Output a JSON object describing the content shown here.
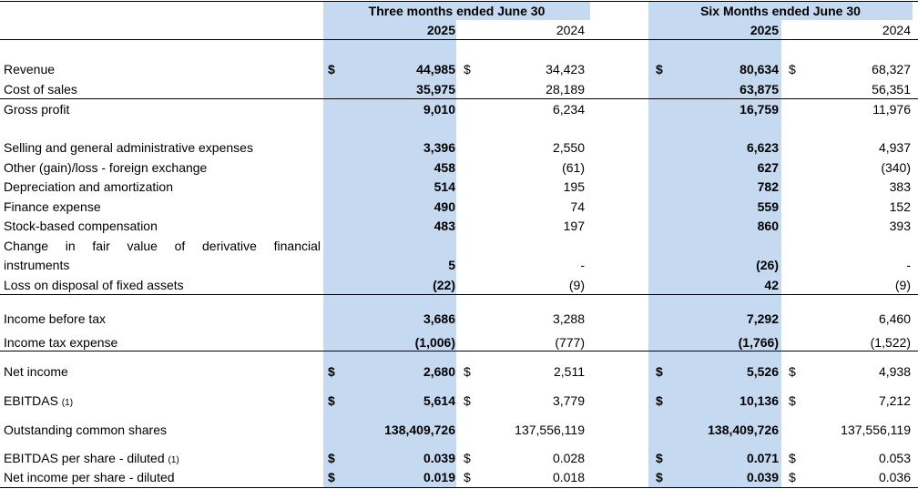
{
  "header": {
    "three_months": "Three months ended June 30",
    "six_months": "Six Months ended June 30",
    "years": [
      "2025",
      "2024",
      "2025",
      "2024"
    ]
  },
  "colors": {
    "highlight": "#c5d9f1"
  },
  "rows": [
    {
      "label": "Revenue",
      "dollar": [
        true,
        true,
        true,
        true
      ],
      "values": [
        "44,985",
        "34,423",
        "80,634",
        "68,327"
      ]
    },
    {
      "label": "Cost of sales",
      "values": [
        "35,975",
        "28,189",
        "63,875",
        "56,351"
      ]
    },
    {
      "label": "Gross profit",
      "values": [
        "9,010",
        "6,234",
        "16,759",
        "11,976"
      ]
    },
    {
      "label": "Selling and general administrative expenses",
      "values": [
        "3,396",
        "2,550",
        "6,623",
        "4,937"
      ]
    },
    {
      "label": "Other (gain)/loss - foreign exchange",
      "values": [
        "458",
        "(61)",
        "627",
        "(340)"
      ]
    },
    {
      "label": "Depreciation and amortization",
      "values": [
        "514",
        "195",
        "782",
        "383"
      ]
    },
    {
      "label": "Finance expense",
      "values": [
        "490",
        "74",
        "559",
        "152"
      ]
    },
    {
      "label": "Stock-based compensation",
      "values": [
        "483",
        "197",
        "860",
        "393"
      ]
    },
    {
      "label": "Change in fair value of derivative financial",
      "label2": "instruments",
      "values": [
        "5",
        "-",
        "(26)",
        "-"
      ]
    },
    {
      "label": "Loss on disposal of fixed assets",
      "values": [
        "(22)",
        "(9)",
        "42",
        "(9)"
      ]
    },
    {
      "label": "Income before tax",
      "values": [
        "3,686",
        "3,288",
        "7,292",
        "6,460"
      ]
    },
    {
      "label": "Income tax expense",
      "values": [
        "(1,006)",
        "(777)",
        "(1,766)",
        "(1,522)"
      ]
    },
    {
      "label": "Net income",
      "dollar": [
        true,
        true,
        true,
        true
      ],
      "values": [
        "2,680",
        "2,511",
        "5,526",
        "4,938"
      ]
    },
    {
      "label": "EBITDAS",
      "note": "(1)",
      "dollar": [
        true,
        true,
        true,
        true
      ],
      "values": [
        "5,614",
        "3,779",
        "10,136",
        "7,212"
      ]
    },
    {
      "label": "Outstanding common shares",
      "values": [
        "138,409,726",
        "137,556,119",
        "138,409,726",
        "137,556,119"
      ]
    },
    {
      "label": "EBITDAS per share - diluted",
      "note": "(1)",
      "dollar": [
        true,
        true,
        true,
        true
      ],
      "values": [
        "0.039",
        "0.028",
        "0.071",
        "0.053"
      ]
    },
    {
      "label": "Net income per share - diluted",
      "dollar": [
        true,
        true,
        true,
        true
      ],
      "values": [
        "0.019",
        "0.018",
        "0.039",
        "0.036"
      ]
    }
  ],
  "currency_symbol": "$"
}
